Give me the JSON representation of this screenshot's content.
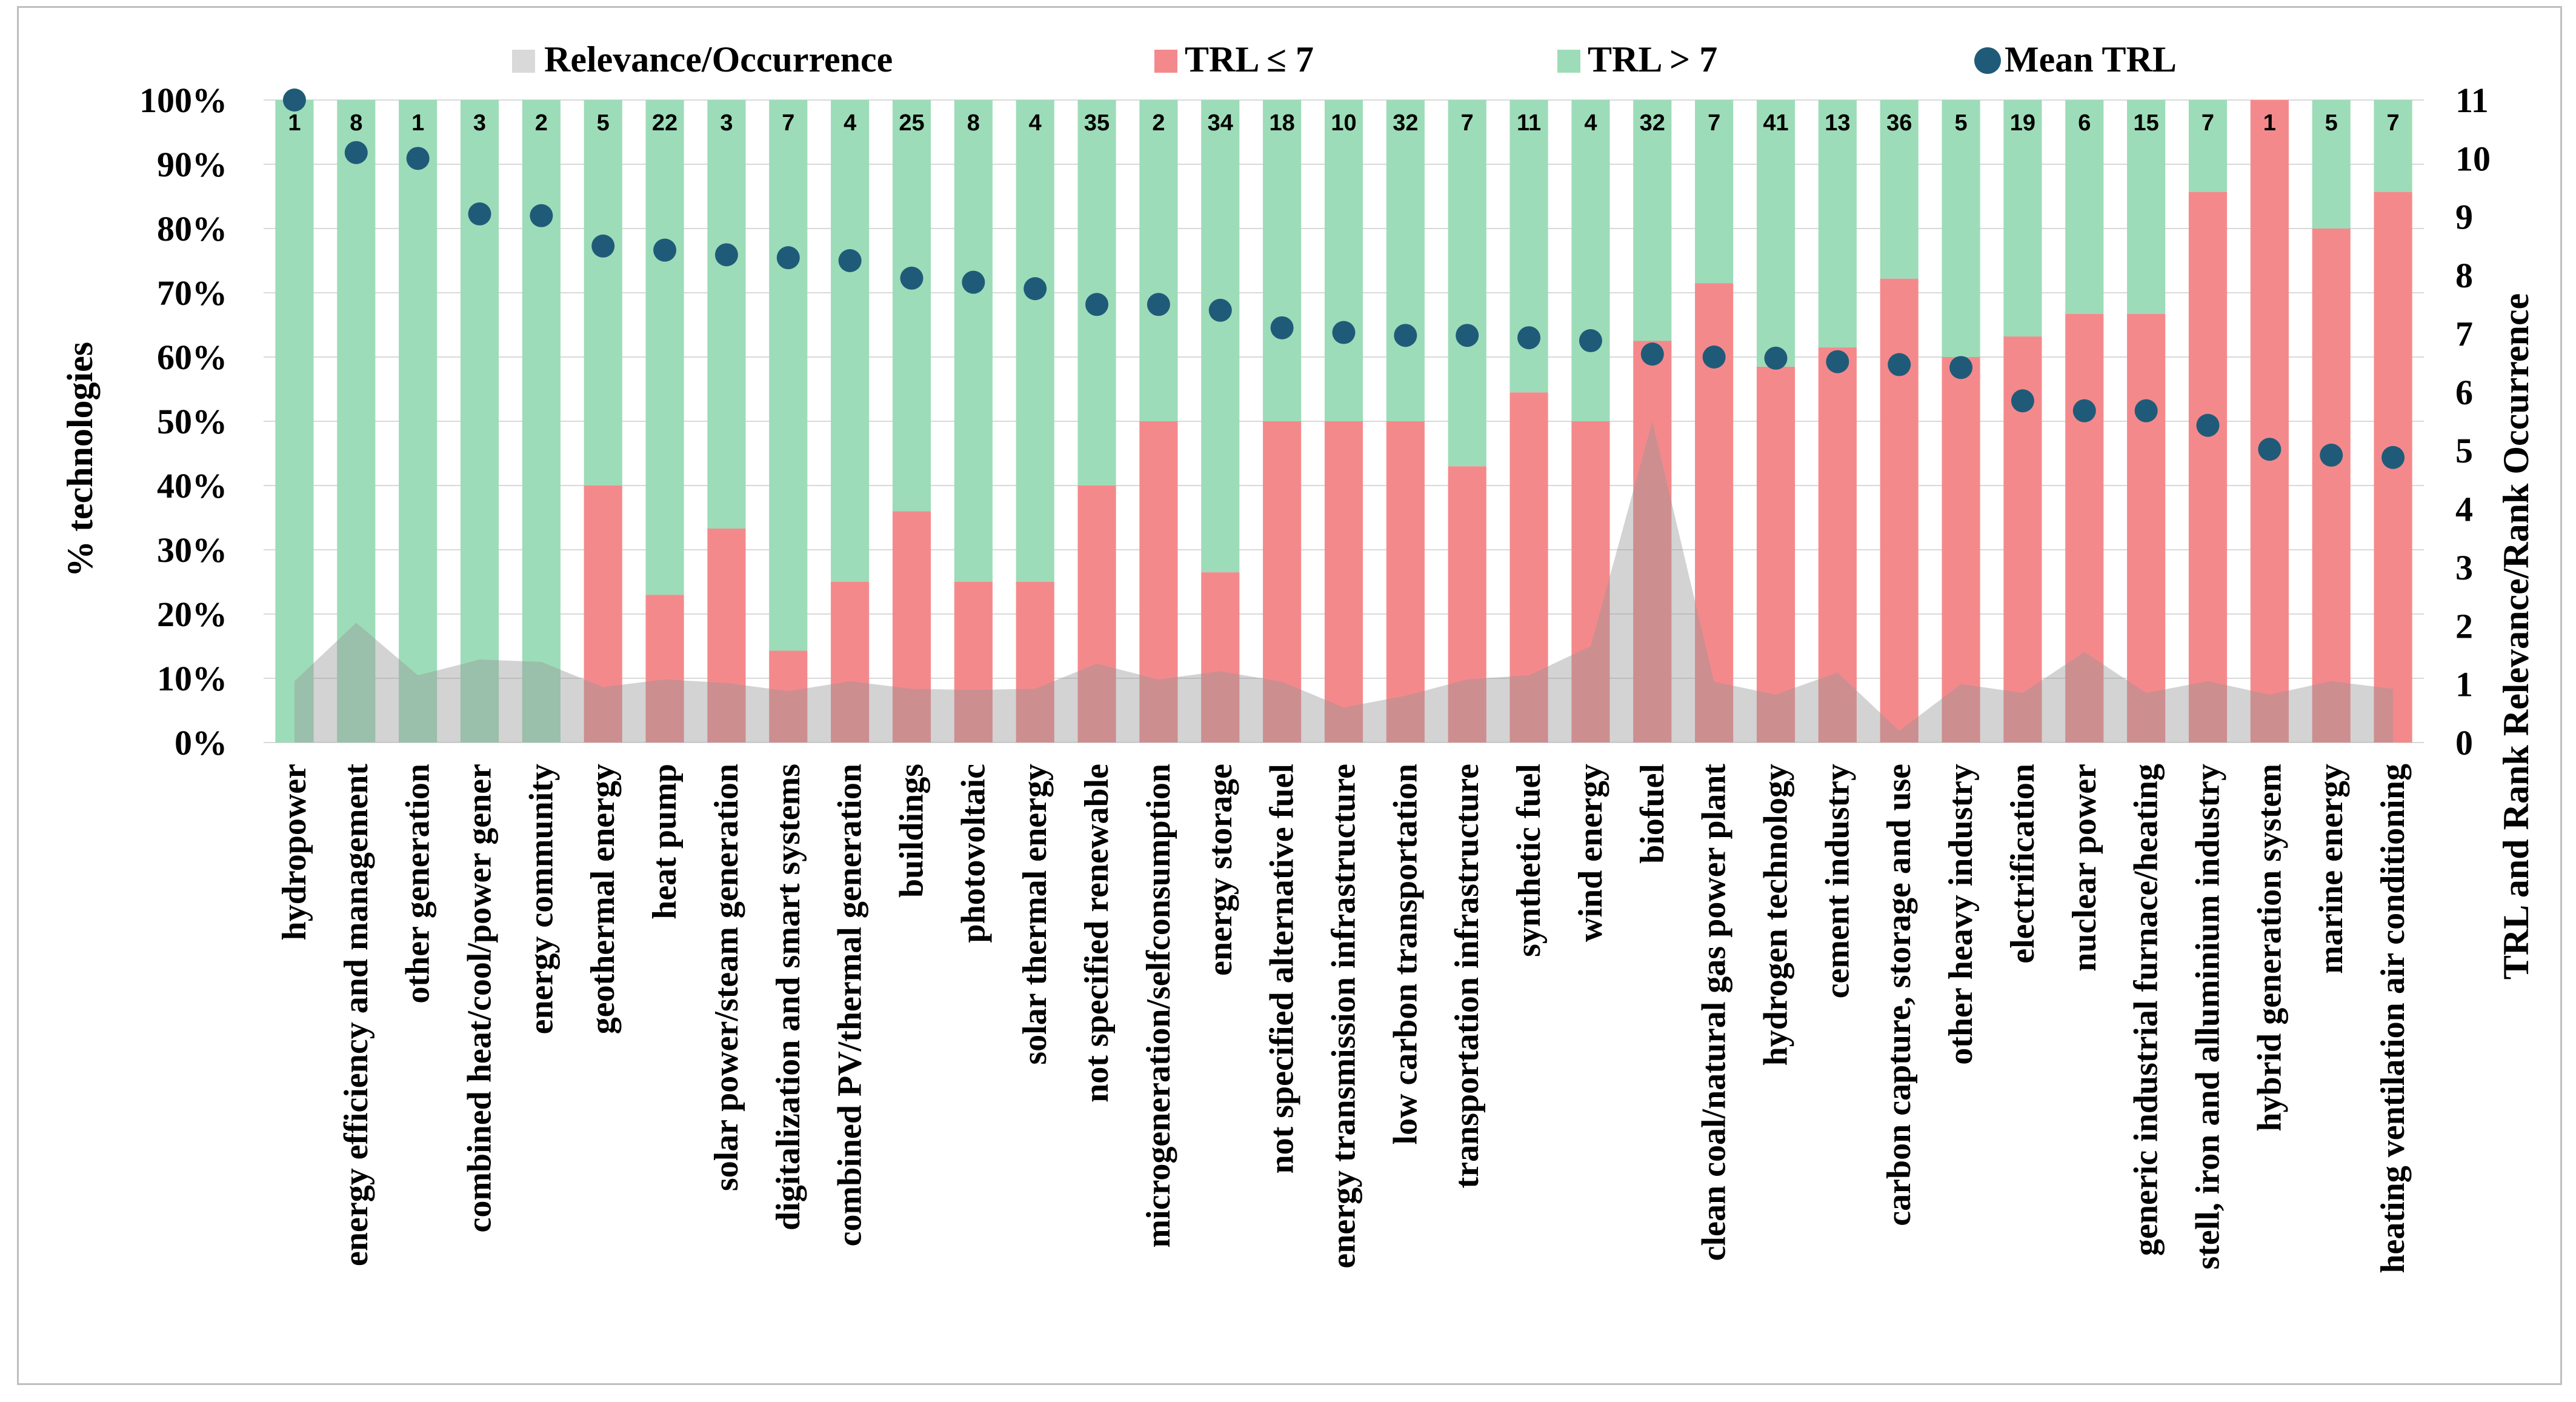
{
  "chart_data": {
    "type": "bar",
    "stacked": true,
    "y_left_label": "% technologies",
    "y_right_label": "TRL and Rank Relevance/Rank Occurrence",
    "y_left_ticks": [
      "0%",
      "10%",
      "20%",
      "30%",
      "40%",
      "50%",
      "60%",
      "70%",
      "80%",
      "90%",
      "100%"
    ],
    "y_right_ticks": [
      "0",
      "1",
      "2",
      "3",
      "4",
      "5",
      "6",
      "7",
      "8",
      "9",
      "10",
      "11"
    ],
    "ylim_left": [
      0,
      100
    ],
    "ylim_right": [
      0,
      11
    ],
    "legend": [
      {
        "name": "Relevance/Occurrence",
        "color": "#d9d9d9",
        "marker": "area"
      },
      {
        "name": "TRL ≤ 7",
        "color": "#f4898c",
        "marker": "square"
      },
      {
        "name": "TRL > 7",
        "color": "#9ddcb8",
        "marker": "square"
      },
      {
        "name": "Mean TRL",
        "color": "#1f5b78",
        "marker": "circle"
      }
    ],
    "colors": {
      "trl_low": "#f4898c",
      "trl_high": "#9ddcb8",
      "relevance": "#d9d9d9",
      "mean": "#1f5b78"
    },
    "categories": [
      "hydropower",
      "energy efficiency and management",
      "other generation",
      "combined heat/cool/power gener",
      "energy community",
      "geothermal energy",
      "heat pump",
      "solar power/steam generation",
      "digitalization and smart systems",
      "combined PV/thermal generation",
      "buildings",
      "photovoltaic",
      "solar thermal energy",
      "not specified renewable",
      "microgeneration/selfconsumption",
      "energy storage",
      "not specified alternative fuel",
      "energy transmission infrastructure",
      "low carbon transportation",
      "transportation infrastructure",
      "synthetic fuel",
      "wind energy",
      "biofuel",
      "clean coal/natural gas power plant",
      "hydrogen technology",
      "cement industry",
      "carbon capture, storage and use",
      "other heavy industry",
      "electrification",
      "nuclear power",
      "generic industrial furnace/heating",
      "stell, iron and alluminium industry",
      "hybrid generation system",
      "marine energy",
      "heating ventilation air conditioning"
    ],
    "series": [
      {
        "name": "TRL ≤ 7",
        "unit": "%",
        "values": [
          0,
          0,
          0,
          0,
          0,
          40,
          23,
          33.3,
          14.3,
          25,
          36,
          25,
          25,
          40,
          50,
          26.5,
          50,
          50,
          50,
          43,
          54.5,
          50,
          62.5,
          71.5,
          58.5,
          61.5,
          72.2,
          60,
          63.2,
          66.7,
          66.7,
          85.7,
          100,
          80,
          85.7
        ]
      },
      {
        "name": "TRL > 7",
        "unit": "%",
        "values": [
          100,
          100,
          100,
          100,
          100,
          60,
          77,
          66.7,
          85.7,
          75,
          64,
          75,
          75,
          60,
          50,
          73.5,
          50,
          50,
          50,
          57,
          45.5,
          50,
          37.5,
          28.5,
          41.5,
          38.5,
          27.8,
          40,
          36.8,
          33.3,
          33.3,
          14.3,
          0,
          20,
          14.3
        ]
      },
      {
        "name": "Relevance/Occurrence",
        "unit": "rank",
        "values": [
          1.05,
          2.05,
          1.15,
          1.42,
          1.38,
          0.95,
          1.08,
          1.02,
          0.88,
          1.05,
          0.92,
          0.9,
          0.92,
          1.35,
          1.08,
          1.22,
          1.04,
          0.6,
          0.8,
          1.08,
          1.15,
          1.65,
          5.5,
          1.04,
          0.82,
          1.2,
          0.2,
          1.0,
          0.85,
          1.55,
          0.85,
          1.05,
          0.82,
          1.05,
          0.92
        ]
      },
      {
        "name": "Mean TRL",
        "unit": "TRL",
        "values": [
          11,
          10.1,
          10,
          9.05,
          9.02,
          8.5,
          8.43,
          8.35,
          8.3,
          8.25,
          7.95,
          7.88,
          7.77,
          7.5,
          7.5,
          7.4,
          7.1,
          7.02,
          6.97,
          6.97,
          6.93,
          6.88,
          6.65,
          6.6,
          6.58,
          6.52,
          6.47,
          6.42,
          5.85,
          5.68,
          5.68,
          5.43,
          5.02,
          4.92,
          4.88
        ]
      }
    ],
    "bar_labels": [
      "1",
      "8",
      "1",
      "3",
      "2",
      "5",
      "22",
      "3",
      "7",
      "4",
      "25",
      "8",
      "4",
      "35",
      "2",
      "34",
      "18",
      "10",
      "32",
      "7",
      "11",
      "4",
      "32",
      "7",
      "41",
      "13",
      "36",
      "5",
      "19",
      "6",
      "15",
      "7",
      "1",
      "5",
      "7"
    ]
  }
}
